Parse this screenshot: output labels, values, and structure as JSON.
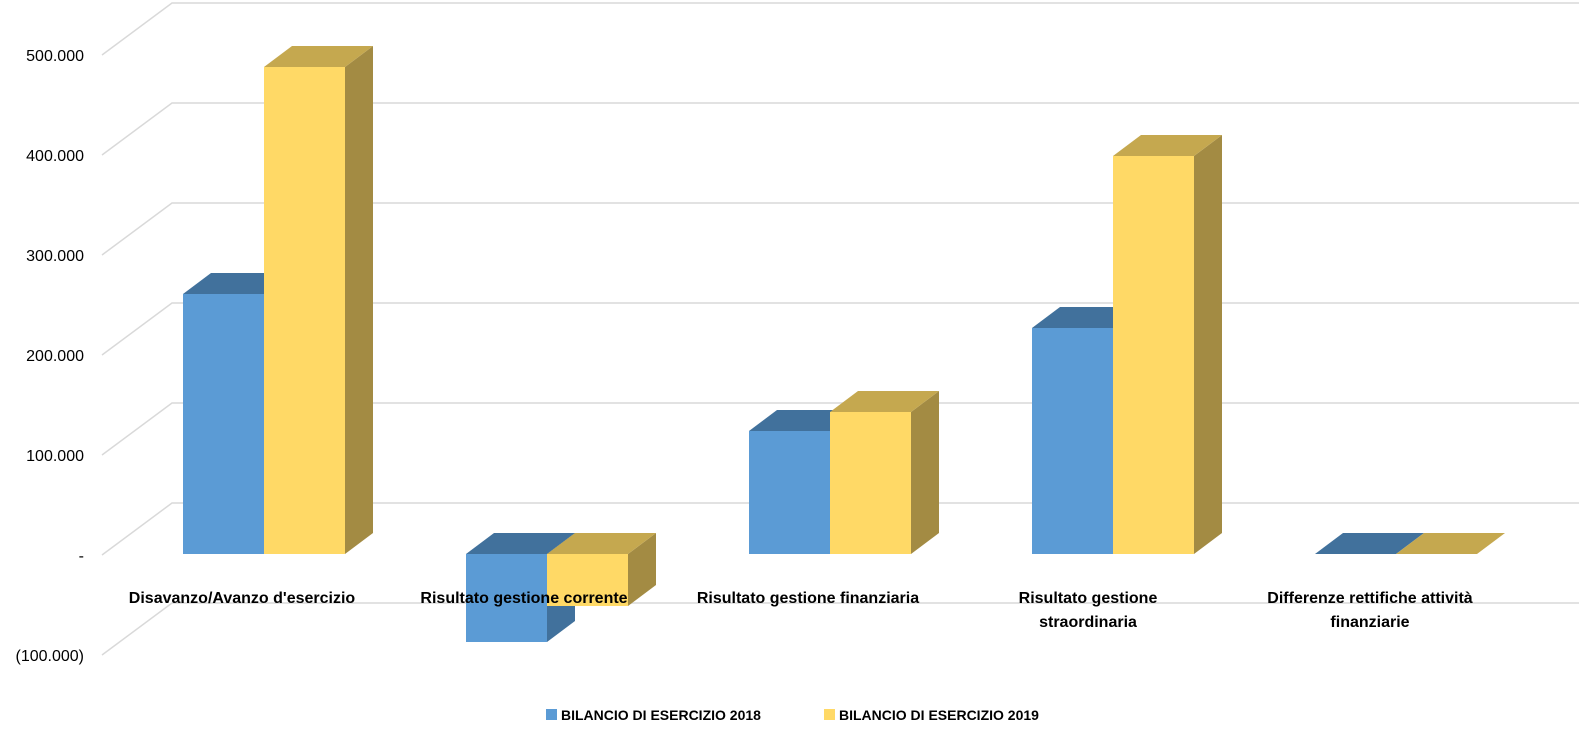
{
  "chart_data": {
    "type": "bar",
    "style": "3d-clustered-column",
    "title": "",
    "xlabel": "",
    "ylabel": "",
    "categories": [
      [
        "Disavanzo/Avanzo d'esercizio"
      ],
      [
        "Risultato gestione corrente"
      ],
      [
        "Risultato gestione finanziaria"
      ],
      [
        "Risultato gestione",
        "straordinaria"
      ],
      [
        "Differenze rettifiche attività",
        "finanziarie"
      ]
    ],
    "series": [
      {
        "name": "BILANCIO DI ESERCIZIO 2018",
        "color": "#5B9BD5",
        "top_color": "#41719C",
        "side_color": "#41719C",
        "values": [
          260000,
          -88000,
          123000,
          226000,
          0
        ]
      },
      {
        "name": "BILANCIO DI ESERCIZIO 2019",
        "color": "#FFD966",
        "top_color": "#C5A84F",
        "side_color": "#A38B43",
        "values": [
          487000,
          -52000,
          142000,
          398000,
          0
        ]
      }
    ],
    "ylim": [
      -100000,
      500000
    ],
    "yticks": [
      -100000,
      0,
      100000,
      200000,
      300000,
      400000,
      500000
    ],
    "ytick_labels": [
      "(100.000)",
      "-",
      "100.000",
      "200.000",
      "300.000",
      "400.000",
      "500.000"
    ],
    "grid": true,
    "legend_position": "bottom",
    "gridline_color": "#D9D9D9"
  }
}
